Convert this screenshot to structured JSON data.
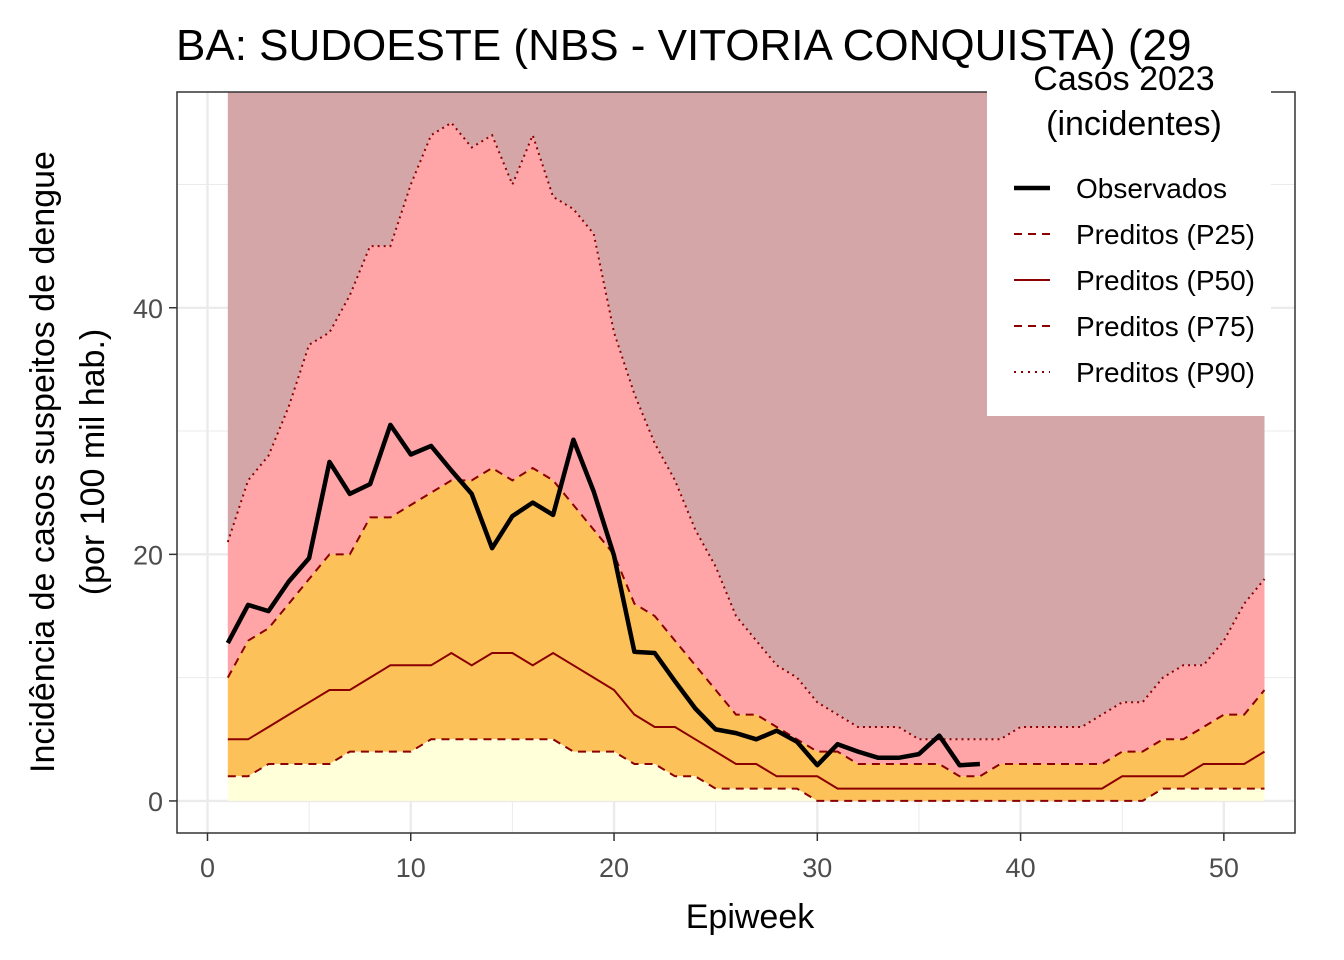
{
  "chart_data": {
    "type": "area",
    "title": "BA: SUDOESTE (NBS - VITORIA CONQUISTA) (29",
    "xlabel": "Epiweek",
    "ylabel_line1": "Incidência de casos suspeitos de dengue",
    "ylabel_line2": "(por 100 mil hab.)",
    "xlim": [
      -1.5,
      53.5
    ],
    "ylim": [
      -2.6,
      57.5
    ],
    "x_ticks": [
      0,
      10,
      20,
      30,
      40,
      50
    ],
    "x_tick_labels": [
      "0",
      "10",
      "20",
      "30",
      "40",
      "50"
    ],
    "y_ticks": [
      0,
      20,
      40
    ],
    "y_tick_labels": [
      "0",
      "20",
      "40"
    ],
    "grid": true,
    "legend_position": "top-right",
    "legend": {
      "title_line1": "Casos 2023",
      "title_line2": "(incidentes)",
      "entries": [
        {
          "label": "Observados",
          "style": "solid-thick",
          "color": "#000000"
        },
        {
          "label": "Preditos (P25)",
          "style": "dashed",
          "color": "#8b0000"
        },
        {
          "label": "Preditos (P50)",
          "style": "solid",
          "color": "#8b0000"
        },
        {
          "label": "Preditos (P75)",
          "style": "dashed",
          "color": "#8b0000"
        },
        {
          "label": "Preditos (P90)",
          "style": "dotted",
          "color": "#8b0000"
        }
      ]
    },
    "band_colors": {
      "below_p25": "#ffffd9",
      "p25_p75": "#fdc15a",
      "p75_p90": "#ffa5a7",
      "above_p90": "#d5a6a8"
    },
    "weeks": [
      1,
      2,
      3,
      4,
      5,
      6,
      7,
      8,
      9,
      10,
      11,
      12,
      13,
      14,
      15,
      16,
      17,
      18,
      19,
      20,
      21,
      22,
      23,
      24,
      25,
      26,
      27,
      28,
      29,
      30,
      31,
      32,
      33,
      34,
      35,
      36,
      37,
      38,
      39,
      40,
      41,
      42,
      43,
      44,
      45,
      46,
      47,
      48,
      49,
      50,
      51,
      52
    ],
    "p25": [
      2,
      2,
      3,
      3,
      3,
      3,
      4,
      4,
      4,
      4,
      5,
      5,
      5,
      5,
      5,
      5,
      5,
      4,
      4,
      4,
      3,
      3,
      2,
      2,
      1,
      1,
      1,
      1,
      1,
      0,
      0,
      0,
      0,
      0,
      0,
      0,
      0,
      0,
      0,
      0,
      0,
      0,
      0,
      0,
      0,
      0,
      1,
      1,
      1,
      1,
      1,
      1
    ],
    "p50": [
      5,
      5,
      6,
      7,
      8,
      9,
      9,
      10,
      11,
      11,
      11,
      12,
      11,
      12,
      12,
      11,
      12,
      11,
      10,
      9,
      7,
      6,
      6,
      5,
      4,
      3,
      3,
      2,
      2,
      2,
      1,
      1,
      1,
      1,
      1,
      1,
      1,
      1,
      1,
      1,
      1,
      1,
      1,
      1,
      2,
      2,
      2,
      2,
      3,
      3,
      3,
      4
    ],
    "p75": [
      10,
      13,
      14,
      16,
      18,
      20,
      20,
      23,
      23,
      24,
      25,
      26,
      26,
      27,
      26,
      27,
      26,
      24,
      22,
      20,
      16,
      15,
      13,
      11,
      9,
      7,
      7,
      6,
      5,
      4,
      4,
      3,
      3,
      3,
      3,
      3,
      2,
      2,
      3,
      3,
      3,
      3,
      3,
      3,
      4,
      4,
      5,
      5,
      6,
      7,
      7,
      9
    ],
    "p90": [
      21,
      26,
      28,
      32,
      37,
      38,
      41,
      45,
      45,
      50,
      54,
      55,
      53,
      54,
      50,
      54,
      49,
      48,
      46,
      38,
      33,
      29,
      26,
      22,
      19,
      15,
      13,
      11,
      10,
      8,
      7,
      6,
      6,
      6,
      5,
      5,
      5,
      5,
      5,
      6,
      6,
      6,
      6,
      7,
      8,
      8,
      10,
      11,
      11,
      13,
      16,
      18
    ],
    "observed_weeks": [
      1,
      2,
      3,
      4,
      5,
      6,
      7,
      8,
      9,
      10,
      11,
      12,
      13,
      14,
      15,
      16,
      17,
      18,
      19,
      20,
      21,
      22,
      23,
      24,
      25,
      26,
      27,
      28,
      29,
      30,
      31,
      32,
      33,
      34,
      35,
      36,
      37,
      38
    ],
    "observed": [
      12.8,
      15.9,
      15.4,
      17.8,
      19.7,
      27.5,
      24.9,
      25.7,
      30.5,
      28.1,
      28.8,
      26.8,
      24.9,
      20.5,
      23.1,
      24.2,
      23.2,
      29.3,
      25.1,
      19.9,
      12.1,
      12.0,
      9.7,
      7.5,
      5.8,
      5.5,
      5.0,
      5.7,
      4.8,
      2.9,
      4.6,
      4.0,
      3.5,
      3.5,
      3.8,
      5.3,
      2.9,
      3.0
    ]
  }
}
